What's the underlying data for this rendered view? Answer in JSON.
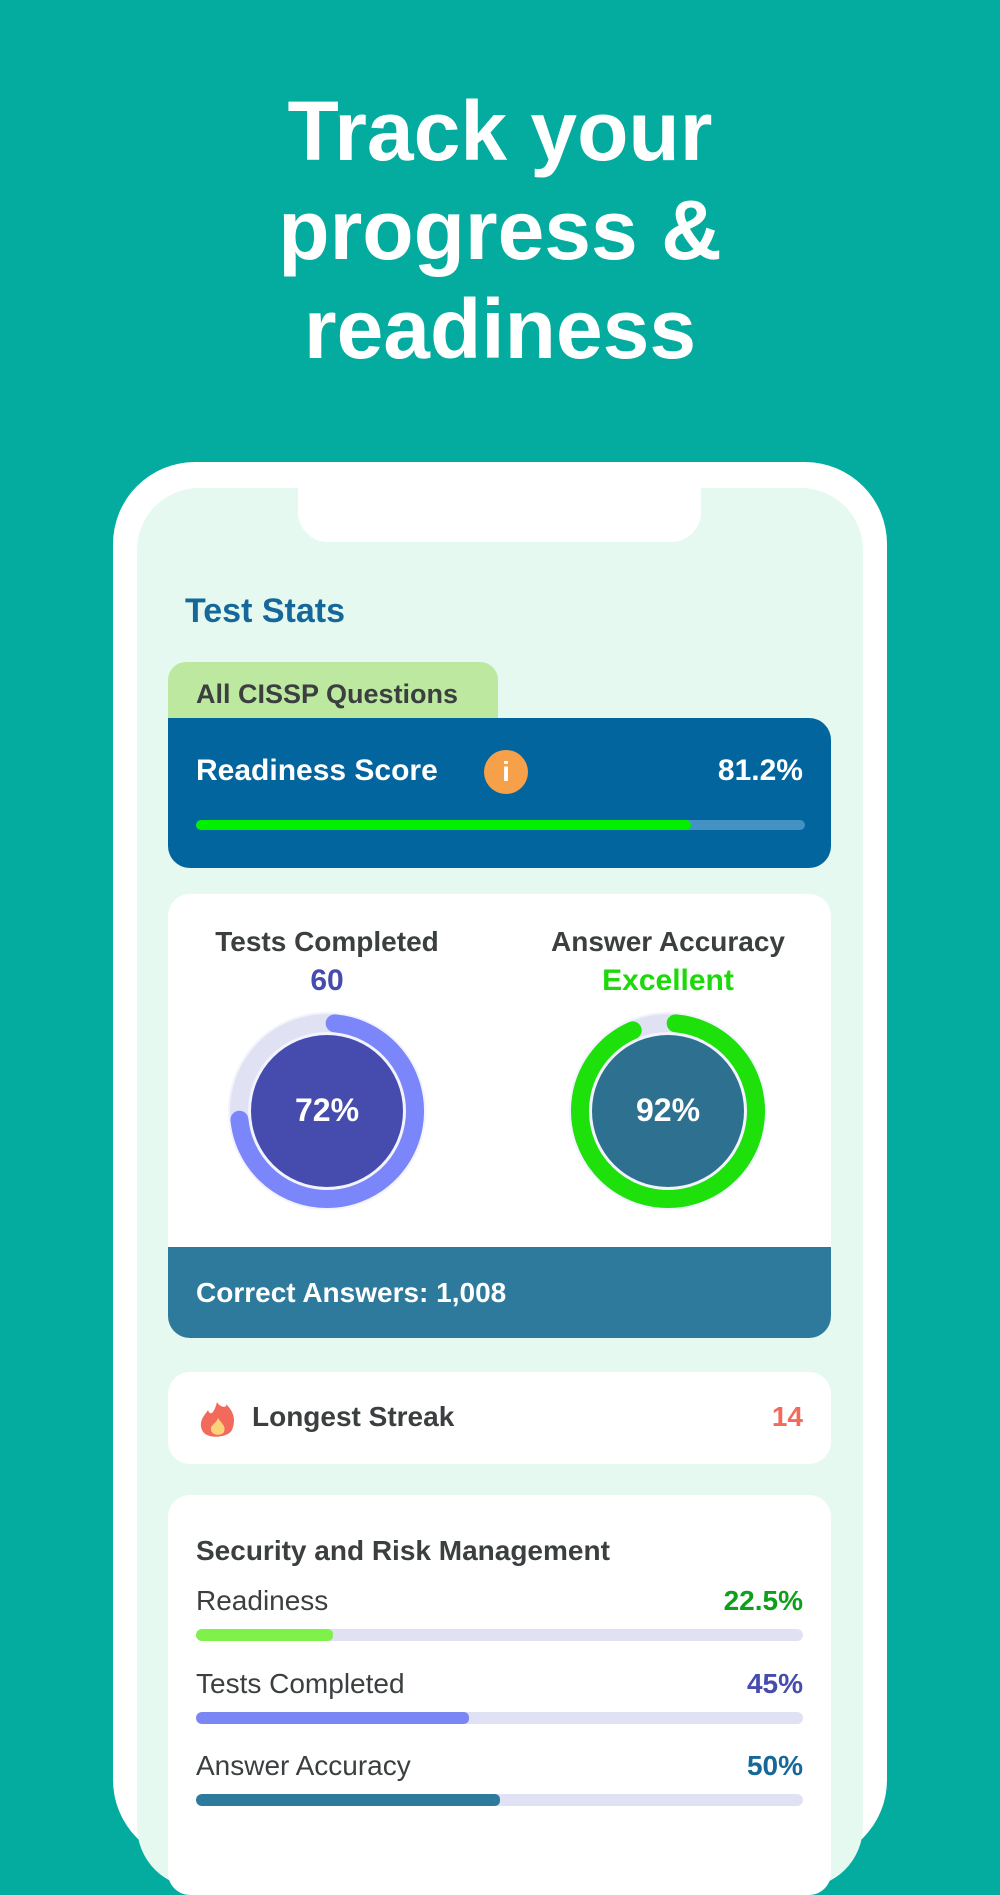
{
  "headline": {
    "line1": "Track your",
    "line2": "progress &",
    "line3": "readiness"
  },
  "screen": {
    "title": "Test Stats",
    "tab": "All CISSP Questions",
    "readiness": {
      "label": "Readiness Score",
      "value": "81.2%",
      "percent": 81.2,
      "info_icon": "info-icon",
      "fill_color": "#00f000"
    },
    "tests_completed": {
      "label": "Tests Completed",
      "value": "60",
      "ring_label": "72%",
      "percent": 72,
      "ring_color": "#7b86fb",
      "disc_color": "#454cad",
      "value_color": "#454cad"
    },
    "answer_accuracy": {
      "label": "Answer Accuracy",
      "value": "Excellent",
      "ring_label": "92%",
      "percent": 92,
      "ring_color": "#1ee00a",
      "disc_color": "#2e7090",
      "value_color": "#1ed90a"
    },
    "correct_answers": "Correct Answers: 1,008",
    "streak": {
      "label": "Longest Streak",
      "value": "14",
      "icon": "flame-icon",
      "value_color": "#f26a5c"
    },
    "domain": {
      "title": "Security and Risk Management",
      "rows": [
        {
          "label": "Readiness",
          "value": "22.5%",
          "percent": 22.5,
          "color": "#0f9f1a",
          "bar": "#7ef24b"
        },
        {
          "label": "Tests Completed",
          "value": "45%",
          "percent": 45,
          "color": "#454cad",
          "bar": "#7b86f5"
        },
        {
          "label": "Answer Accuracy",
          "value": "50%",
          "percent": 50,
          "color": "#17689a",
          "bar": "#2e7a9c"
        }
      ]
    }
  }
}
